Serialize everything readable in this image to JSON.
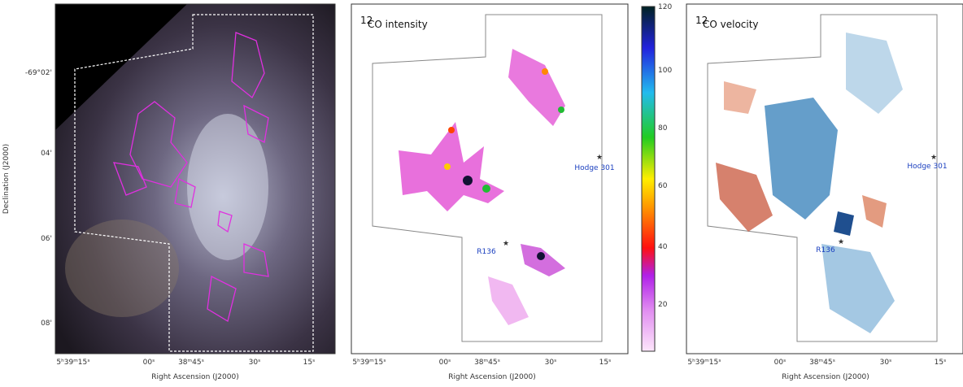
{
  "panels": [
    {
      "y_label": "Declination (J2000)",
      "y_ticks": [
        "-69°02'",
        "04'",
        "06'",
        "08'"
      ],
      "x_ticks": [
        "5ʰ39ᵐ15ˢ",
        "00ˢ",
        "38ᵐ45ˢ",
        "30ˢ",
        "15ˢ"
      ],
      "x_label": "Right Ascension (J2000)"
    },
    {
      "title_sup": "12",
      "title": "CO intensity",
      "x_ticks": [
        "5ʰ39ᵐ15ˢ",
        "00ˢ",
        "38ᵐ45ˢ",
        "30ˢ",
        "15ˢ"
      ],
      "x_label": "Right Ascension (J2000)",
      "labels": [
        "Hodge 301",
        "R136"
      ],
      "colorbar_ticks": [
        "120",
        "100",
        "80",
        "60",
        "40",
        "20"
      ]
    },
    {
      "title_sup": "12",
      "title": "CO velocity",
      "x_ticks": [
        "5ʰ39ᵐ15ˢ",
        "00ˢ",
        "38ᵐ45ˢ",
        "30ˢ",
        "15ˢ"
      ],
      "x_label": "Right Ascension (J2000)",
      "labels": [
        "Hodge 301",
        "R136"
      ]
    }
  ]
}
